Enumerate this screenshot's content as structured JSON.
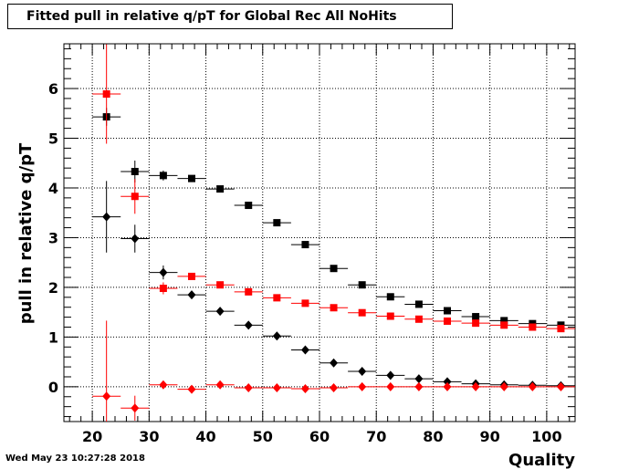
{
  "chart_data": {
    "type": "scatter",
    "title": "Fitted pull in relative q/pT for Global Rec All NoHits",
    "xlabel": "Quality",
    "ylabel": "pull in relative q/pT",
    "xlim": [
      15,
      105
    ],
    "ylim": [
      -0.7,
      6.9
    ],
    "x_ticks": [
      20,
      30,
      40,
      50,
      60,
      70,
      80,
      90,
      100
    ],
    "y_ticks": [
      0,
      1,
      2,
      3,
      4,
      5,
      6
    ],
    "grid": true,
    "x_halfwidth": 2.5,
    "series": [
      {
        "marker": "square",
        "color": "#000000",
        "x": [
          22.5,
          27.5,
          32.5,
          37.5,
          42.5,
          47.5,
          52.5,
          57.5,
          62.5,
          67.5,
          72.5,
          77.5,
          82.5,
          87.5,
          92.5,
          97.5,
          102.5
        ],
        "y": [
          5.43,
          4.33,
          4.25,
          4.19,
          3.98,
          3.65,
          3.3,
          2.86,
          2.38,
          2.05,
          1.81,
          1.66,
          1.53,
          1.41,
          1.33,
          1.27,
          1.24
        ],
        "yerr": [
          0.18,
          0.22,
          0.1,
          0.06,
          0.04,
          0.03,
          0.02,
          0.02,
          0.02,
          0.02,
          0.01,
          0.01,
          0.01,
          0.01,
          0.01,
          0.01,
          0.01
        ]
      },
      {
        "marker": "square",
        "color": "#ff0000",
        "x": [
          22.5,
          27.5,
          32.5,
          37.5,
          42.5,
          47.5,
          52.5,
          57.5,
          62.5,
          67.5,
          72.5,
          77.5,
          82.5,
          87.5,
          92.5,
          97.5,
          102.5
        ],
        "y": [
          5.89,
          3.83,
          1.98,
          2.22,
          2.05,
          1.91,
          1.79,
          1.68,
          1.59,
          1.49,
          1.42,
          1.36,
          1.32,
          1.28,
          1.24,
          1.2,
          1.17
        ],
        "yerr": [
          1.0,
          0.35,
          0.12,
          0.05,
          0.03,
          0.02,
          0.02,
          0.02,
          0.01,
          0.01,
          0.01,
          0.01,
          0.01,
          0.01,
          0.01,
          0.01,
          0.01
        ]
      },
      {
        "marker": "diamond",
        "color": "#000000",
        "x": [
          22.5,
          27.5,
          32.5,
          37.5,
          42.5,
          47.5,
          52.5,
          57.5,
          62.5,
          67.5,
          72.5,
          77.5,
          82.5,
          87.5,
          92.5,
          97.5,
          102.5
        ],
        "y": [
          3.42,
          2.98,
          2.3,
          1.85,
          1.52,
          1.24,
          1.02,
          0.74,
          0.48,
          0.31,
          0.23,
          0.16,
          0.1,
          0.06,
          0.04,
          0.03,
          0.02
        ],
        "yerr": [
          0.72,
          0.28,
          0.14,
          0.07,
          0.04,
          0.03,
          0.02,
          0.02,
          0.02,
          0.01,
          0.01,
          0.01,
          0.01,
          0.01,
          0.01,
          0.01,
          0.01
        ]
      },
      {
        "marker": "diamond",
        "color": "#ff0000",
        "x": [
          22.5,
          27.5,
          32.5,
          37.5,
          42.5,
          47.5,
          52.5,
          57.5,
          62.5,
          67.5,
          72.5,
          77.5,
          82.5,
          87.5,
          92.5,
          97.5,
          102.5
        ],
        "y": [
          -0.19,
          -0.43,
          0.04,
          -0.05,
          0.04,
          -0.02,
          -0.02,
          -0.04,
          -0.02,
          0.0,
          0.0,
          0.0,
          0.0,
          0.0,
          0.0,
          0.0,
          0.0
        ],
        "yerr": [
          1.52,
          0.25,
          0.07,
          0.03,
          0.02,
          0.01,
          0.01,
          0.01,
          0.01,
          0.01,
          0.01,
          0.01,
          0.01,
          0.01,
          0.01,
          0.01,
          0.01
        ]
      }
    ]
  },
  "timestamp": "Wed May 23 10:27:28 2018"
}
